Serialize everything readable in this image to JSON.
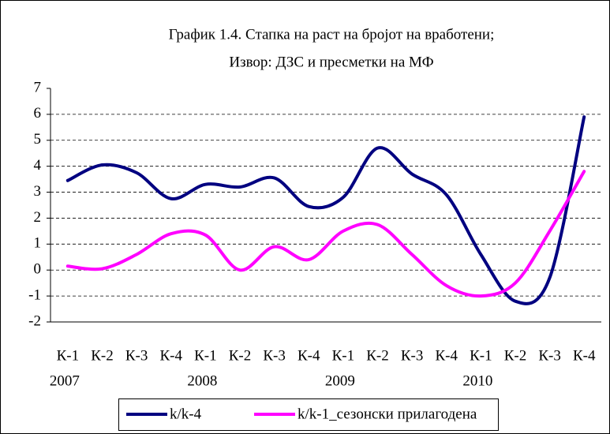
{
  "chart_data": {
    "type": "line",
    "title": "График 1.4. Стапка на раст на бројот на вработени;",
    "subtitle": "Извор: ДЗС и пресметки на МФ",
    "categories": [
      "К-1",
      "К-2",
      "К-3",
      "К-4",
      "К-1",
      "К-2",
      "К-3",
      "К-4",
      "К-1",
      "К-2",
      "К-3",
      "К-4",
      "К-1",
      "К-2",
      "К-3",
      "К-4"
    ],
    "x_groups": [
      "2007",
      "2008",
      "2009",
      "2010"
    ],
    "series": [
      {
        "name": "k/k-4",
        "color": "#000080",
        "values": [
          3.45,
          4.05,
          3.75,
          2.75,
          3.3,
          3.2,
          3.55,
          2.45,
          2.8,
          4.7,
          3.7,
          2.9,
          0.6,
          -1.2,
          -0.3,
          5.9
        ]
      },
      {
        "name": "k/k-1_сезонски прилагодена",
        "color": "#ff00ff",
        "values": [
          0.15,
          0.05,
          0.6,
          1.4,
          1.35,
          0.0,
          0.9,
          0.4,
          1.5,
          1.75,
          0.6,
          -0.6,
          -1.0,
          -0.5,
          1.5,
          3.8
        ]
      }
    ],
    "ylim": [
      -2,
      7
    ],
    "yticks": [
      -2,
      -1,
      0,
      1,
      2,
      3,
      4,
      5,
      6,
      7
    ],
    "grid": true,
    "legend": "bottom"
  }
}
